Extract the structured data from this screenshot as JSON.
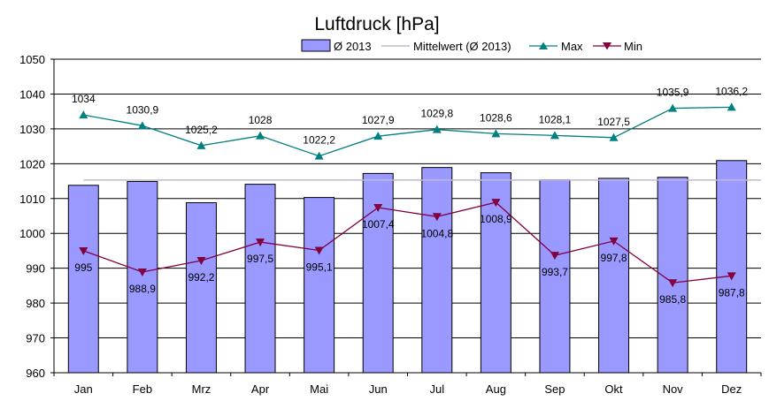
{
  "chart_data": {
    "type": "bar",
    "title": "Luftdruck [hPa]",
    "categories": [
      "Jan",
      "Feb",
      "Mrz",
      "Apr",
      "Mai",
      "Jun",
      "Jul",
      "Aug",
      "Sep",
      "Okt",
      "Nov",
      "Dez"
    ],
    "series": [
      {
        "name": "Ø 2013",
        "type": "bar",
        "color": "#9999FF",
        "values": [
          1013.8,
          1014.9,
          1008.8,
          1014.1,
          1010.3,
          1017.2,
          1018.9,
          1017.4,
          1015.4,
          1015.8,
          1016.1,
          1020.9
        ]
      },
      {
        "name": "Mittelwert (Ø 2013)",
        "type": "line",
        "color": "#C0B8D8",
        "values": [
          1015.3,
          1015.3,
          1015.3,
          1015.3,
          1015.3,
          1015.3,
          1015.3,
          1015.3,
          1015.3,
          1015.3,
          1015.3,
          1015.3
        ]
      },
      {
        "name": "Max",
        "type": "line",
        "color": "#008080",
        "values": [
          1034,
          1030.9,
          1025.2,
          1028,
          1022.2,
          1027.9,
          1029.8,
          1028.6,
          1028.1,
          1027.5,
          1035.9,
          1036.2
        ]
      },
      {
        "name": "Min",
        "type": "line",
        "color": "#800040",
        "values": [
          995,
          988.9,
          992.2,
          997.5,
          995.1,
          1007.4,
          1004.8,
          1008.9,
          993.7,
          997.8,
          985.8,
          987.8
        ]
      }
    ],
    "max_labels": [
      "1034",
      "1030,9",
      "1025,2",
      "1028",
      "1022,2",
      "1027,9",
      "1029,8",
      "1028,6",
      "1028,1",
      "1027,5",
      "1035,9",
      "1036,2"
    ],
    "min_labels": [
      "995",
      "988,9",
      "992,2",
      "997,5",
      "995,1",
      "1007,4",
      "1004,8",
      "1008,9",
      "993,7",
      "997,8",
      "985,8",
      "987,8"
    ],
    "ylim": [
      960,
      1050
    ],
    "yticks": [
      960,
      970,
      980,
      990,
      1000,
      1010,
      1020,
      1030,
      1040,
      1050
    ],
    "xlabel": "",
    "ylabel": "",
    "grid": true,
    "legend": "top"
  }
}
